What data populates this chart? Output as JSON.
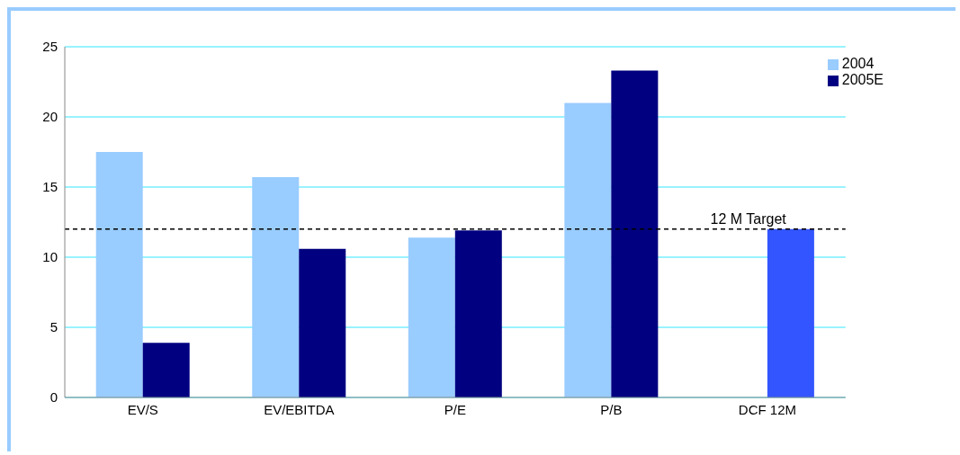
{
  "chart_data": {
    "type": "bar",
    "categories": [
      "EV/S",
      "EV/EBITDA",
      "P/E",
      "P/B",
      "DCF 12M"
    ],
    "series": [
      {
        "name": "2004",
        "color": "#99ccff",
        "values": [
          17.5,
          15.7,
          11.4,
          21.0,
          null
        ]
      },
      {
        "name": "2005E",
        "color": "#000080",
        "values": [
          3.9,
          10.6,
          11.9,
          23.3,
          12.0
        ],
        "colors": [
          "#000080",
          "#000080",
          "#000080",
          "#000080",
          "#3355ff"
        ]
      }
    ],
    "ylim": [
      0,
      25
    ],
    "yticks": [
      0,
      5,
      10,
      15,
      20,
      25
    ],
    "grid": "y",
    "legend": "top right",
    "ref_lines": [
      {
        "axis": "y",
        "value": 12,
        "label": "12 M Target",
        "color": "#000000",
        "line_style": "dashed"
      }
    ]
  }
}
